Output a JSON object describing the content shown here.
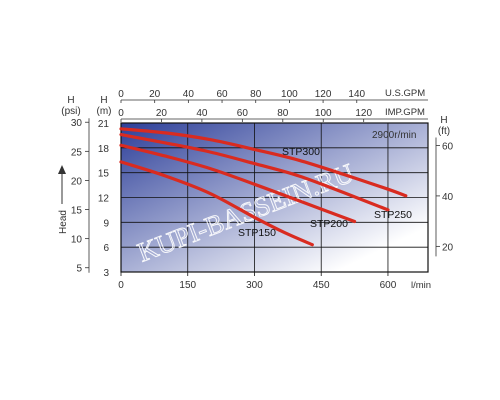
{
  "chart_data": {
    "type": "line",
    "title": "",
    "annotation": "2900r/min",
    "watermark": "KUPI-BASSEIN.RU",
    "colors": {
      "curve": "#d92b20",
      "grid": "#111111",
      "gradient_dark": "#2d3f99",
      "gradient_light": "#ffffff"
    },
    "axes": {
      "bottom": {
        "label": "l/min",
        "range": [
          0,
          690
        ],
        "ticks": [
          0,
          150,
          300,
          450,
          600
        ]
      },
      "top_us": {
        "label": "U.S.GPM",
        "range": [
          0,
          182.3
        ],
        "ticks": [
          0,
          20,
          40,
          60,
          80,
          100,
          120,
          140
        ]
      },
      "top_imp": {
        "label": "IMP.GPM",
        "range": [
          0,
          151.8
        ],
        "ticks": [
          0,
          20,
          40,
          60,
          80,
          100,
          120
        ]
      },
      "left_m": {
        "label": "H",
        "unit": "(m)",
        "range": [
          3,
          21
        ],
        "ticks": [
          3,
          6,
          9,
          12,
          15,
          18,
          21
        ]
      },
      "left_psi": {
        "label": "H",
        "unit": "(psi)",
        "ticks": [
          5,
          10,
          15,
          20,
          25,
          30
        ]
      },
      "right_ft": {
        "label": "H",
        "unit": "(ft)",
        "ticks": [
          20,
          40,
          60
        ]
      },
      "side_label": "Head"
    },
    "series": [
      {
        "name": "STP150",
        "points": [
          [
            0,
            16.3
          ],
          [
            100,
            14.6
          ],
          [
            200,
            12.5
          ],
          [
            300,
            9.6
          ],
          [
            370,
            7.7
          ],
          [
            430,
            6.3
          ]
        ]
      },
      {
        "name": "STP200",
        "points": [
          [
            0,
            18.3
          ],
          [
            100,
            17.0
          ],
          [
            200,
            15.5
          ],
          [
            300,
            13.6
          ],
          [
            400,
            11.6
          ],
          [
            470,
            10.2
          ],
          [
            525,
            9.1
          ]
        ]
      },
      {
        "name": "STP250",
        "points": [
          [
            0,
            19.6
          ],
          [
            100,
            18.6
          ],
          [
            200,
            17.5
          ],
          [
            300,
            16.1
          ],
          [
            400,
            14.6
          ],
          [
            500,
            12.6
          ],
          [
            600,
            10.5
          ]
        ]
      },
      {
        "name": "STP300",
        "points": [
          [
            0,
            20.3
          ],
          [
            100,
            19.8
          ],
          [
            200,
            19.0
          ],
          [
            300,
            17.8
          ],
          [
            400,
            16.5
          ],
          [
            500,
            14.8
          ],
          [
            600,
            13.0
          ],
          [
            640,
            12.2
          ]
        ]
      }
    ]
  }
}
